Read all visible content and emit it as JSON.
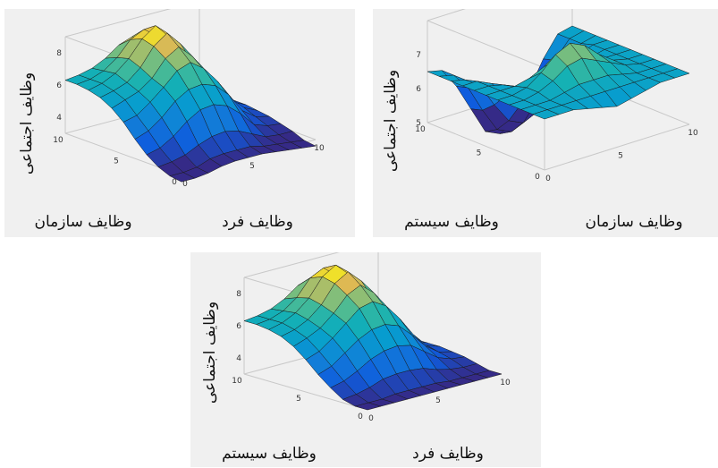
{
  "chart_data": [
    {
      "type": "surface3d",
      "xlabel": "وظایف فرد",
      "ylabel": "وظایف سازمان",
      "zlabel": "وظایف اجتماعی",
      "xlim": [
        0,
        10
      ],
      "ylim": [
        0,
        10
      ],
      "zlim": [
        3,
        9
      ],
      "xticks": [
        "0",
        "5",
        "10"
      ],
      "yticks": [
        "0",
        "5",
        "10"
      ],
      "zticks": [
        "4",
        "6",
        "8"
      ],
      "x": [
        0,
        1,
        2,
        3,
        4,
        5,
        6,
        7,
        8,
        9,
        10
      ],
      "y": [
        0,
        1,
        2,
        3,
        4,
        5,
        6,
        7,
        8,
        9,
        10
      ],
      "z": [
        [
          2.6,
          2.6,
          2.7,
          2.9,
          3.0,
          3.0,
          3.0,
          2.9,
          2.8,
          2.7,
          2.6
        ],
        [
          2.7,
          2.7,
          2.8,
          3.1,
          3.2,
          3.2,
          3.2,
          3.0,
          2.9,
          2.8,
          2.7
        ],
        [
          3.0,
          3.1,
          3.3,
          3.7,
          4.0,
          4.1,
          3.9,
          3.5,
          3.1,
          3.0,
          3.0
        ],
        [
          3.5,
          3.7,
          4.2,
          4.9,
          5.4,
          5.5,
          5.2,
          4.5,
          3.6,
          3.3,
          3.2
        ],
        [
          4.2,
          4.5,
          5.1,
          5.9,
          6.4,
          6.5,
          6.2,
          5.4,
          4.2,
          3.6,
          3.4
        ],
        [
          5.0,
          5.2,
          5.8,
          6.5,
          7.3,
          7.6,
          7.0,
          6.0,
          4.7,
          3.9,
          3.5
        ],
        [
          5.6,
          5.9,
          6.2,
          6.8,
          7.8,
          8.3,
          7.5,
          6.3,
          5.0,
          4.0,
          3.6
        ],
        [
          6.0,
          6.2,
          6.5,
          7.2,
          8.3,
          8.9,
          8.0,
          6.5,
          5.1,
          4.1,
          3.6
        ],
        [
          6.2,
          6.4,
          6.8,
          7.5,
          8.5,
          9.1,
          8.2,
          6.7,
          5.2,
          4.1,
          3.6
        ],
        [
          6.3,
          6.4,
          6.7,
          7.3,
          8.2,
          8.6,
          8.0,
          6.6,
          5.1,
          4.1,
          3.6
        ],
        [
          6.3,
          6.4,
          6.6,
          7.0,
          7.6,
          7.9,
          7.4,
          6.4,
          5.0,
          4.0,
          3.6
        ]
      ]
    },
    {
      "type": "surface3d",
      "xlabel": "وظایف سازمان",
      "ylabel": "وظایف سیستم",
      "zlabel": "وظایف اجتماعی",
      "xlim": [
        0,
        10
      ],
      "ylim": [
        0,
        10
      ],
      "zlim": [
        5,
        8
      ],
      "xticks": [
        "0",
        "5",
        "10"
      ],
      "yticks": [
        "0",
        "5",
        "10"
      ],
      "zticks": [
        "5",
        "6",
        "7"
      ],
      "x": [
        0,
        1,
        2,
        3,
        4,
        5,
        6,
        7,
        8,
        9,
        10
      ],
      "y": [
        0,
        1,
        2,
        3,
        4,
        5,
        6,
        7,
        8,
        9,
        10
      ],
      "z": [
        [
          6.5,
          6.5,
          6.5,
          6.4,
          6.3,
          6.2,
          6.3,
          6.4,
          6.5,
          6.5,
          6.5
        ],
        [
          6.5,
          6.5,
          6.5,
          6.5,
          6.5,
          6.5,
          6.5,
          6.5,
          6.5,
          6.5,
          6.5
        ],
        [
          6.5,
          6.5,
          6.5,
          6.6,
          6.7,
          6.7,
          6.7,
          6.6,
          6.5,
          6.5,
          6.5
        ],
        [
          6.5,
          6.5,
          6.6,
          6.8,
          7.1,
          7.2,
          7.0,
          6.8,
          6.6,
          6.5,
          6.5
        ],
        [
          6.5,
          6.5,
          6.6,
          6.9,
          7.3,
          7.5,
          7.3,
          6.9,
          6.6,
          6.5,
          6.5
        ],
        [
          6.5,
          6.5,
          6.5,
          6.6,
          6.8,
          6.9,
          6.8,
          6.6,
          6.5,
          6.5,
          6.5
        ],
        [
          6.5,
          6.5,
          6.4,
          6.2,
          6.0,
          5.9,
          6.0,
          6.2,
          6.4,
          6.5,
          6.5
        ],
        [
          6.5,
          6.5,
          6.3,
          5.8,
          5.4,
          5.3,
          5.4,
          5.8,
          6.3,
          6.5,
          6.5
        ],
        [
          6.5,
          6.4,
          6.1,
          5.4,
          4.8,
          4.6,
          4.8,
          5.4,
          6.1,
          6.4,
          6.5
        ],
        [
          6.5,
          6.4,
          5.9,
          5.1,
          4.4,
          4.2,
          4.4,
          5.1,
          5.9,
          6.4,
          6.5
        ],
        [
          6.5,
          6.4,
          5.8,
          5.0,
          4.2,
          4.0,
          4.2,
          5.0,
          5.8,
          6.4,
          6.5
        ]
      ]
    },
    {
      "type": "surface3d",
      "xlabel": "وظایف فرد",
      "ylabel": "وظایف سیستم",
      "zlabel": "وظایف اجتماعی",
      "xlim": [
        0,
        10
      ],
      "ylim": [
        0,
        10
      ],
      "zlim": [
        3,
        9
      ],
      "xticks": [
        "0",
        "5",
        "10"
      ],
      "yticks": [
        "0",
        "5",
        "10"
      ],
      "zticks": [
        "4",
        "6",
        "8"
      ],
      "x": [
        0,
        1,
        2,
        3,
        4,
        5,
        6,
        7,
        8,
        9,
        10
      ],
      "y": [
        0,
        1,
        2,
        3,
        4,
        5,
        6,
        7,
        8,
        9,
        10
      ],
      "z": [
        [
          3.0,
          3.0,
          3.0,
          3.0,
          3.0,
          3.0,
          3.0,
          3.0,
          3.0,
          3.0,
          3.0
        ],
        [
          3.0,
          3.0,
          3.0,
          3.1,
          3.1,
          3.1,
          3.1,
          3.0,
          3.0,
          3.0,
          3.0
        ],
        [
          3.2,
          3.3,
          3.5,
          3.8,
          3.9,
          3.9,
          3.8,
          3.5,
          3.3,
          3.2,
          3.2
        ],
        [
          3.7,
          3.9,
          4.3,
          4.8,
          5.1,
          5.2,
          5.0,
          4.4,
          3.8,
          3.5,
          3.4
        ],
        [
          4.3,
          4.6,
          5.2,
          5.8,
          6.2,
          6.3,
          6.0,
          5.2,
          4.3,
          3.7,
          3.5
        ],
        [
          5.0,
          5.3,
          5.9,
          6.6,
          7.3,
          7.5,
          7.0,
          6.0,
          4.8,
          3.9,
          3.6
        ],
        [
          5.6,
          5.9,
          6.3,
          7.0,
          7.9,
          8.3,
          7.6,
          6.3,
          5.0,
          4.0,
          3.6
        ],
        [
          6.0,
          6.2,
          6.6,
          7.3,
          8.4,
          8.9,
          8.1,
          6.6,
          5.1,
          4.1,
          3.6
        ],
        [
          6.2,
          6.4,
          6.8,
          7.5,
          8.6,
          9.1,
          8.3,
          6.7,
          5.2,
          4.1,
          3.6
        ],
        [
          6.3,
          6.4,
          6.7,
          7.3,
          8.3,
          8.7,
          8.0,
          6.6,
          5.1,
          4.1,
          3.6
        ],
        [
          6.3,
          6.4,
          6.6,
          7.0,
          7.6,
          7.9,
          7.4,
          6.4,
          5.0,
          4.0,
          3.6
        ]
      ]
    }
  ]
}
